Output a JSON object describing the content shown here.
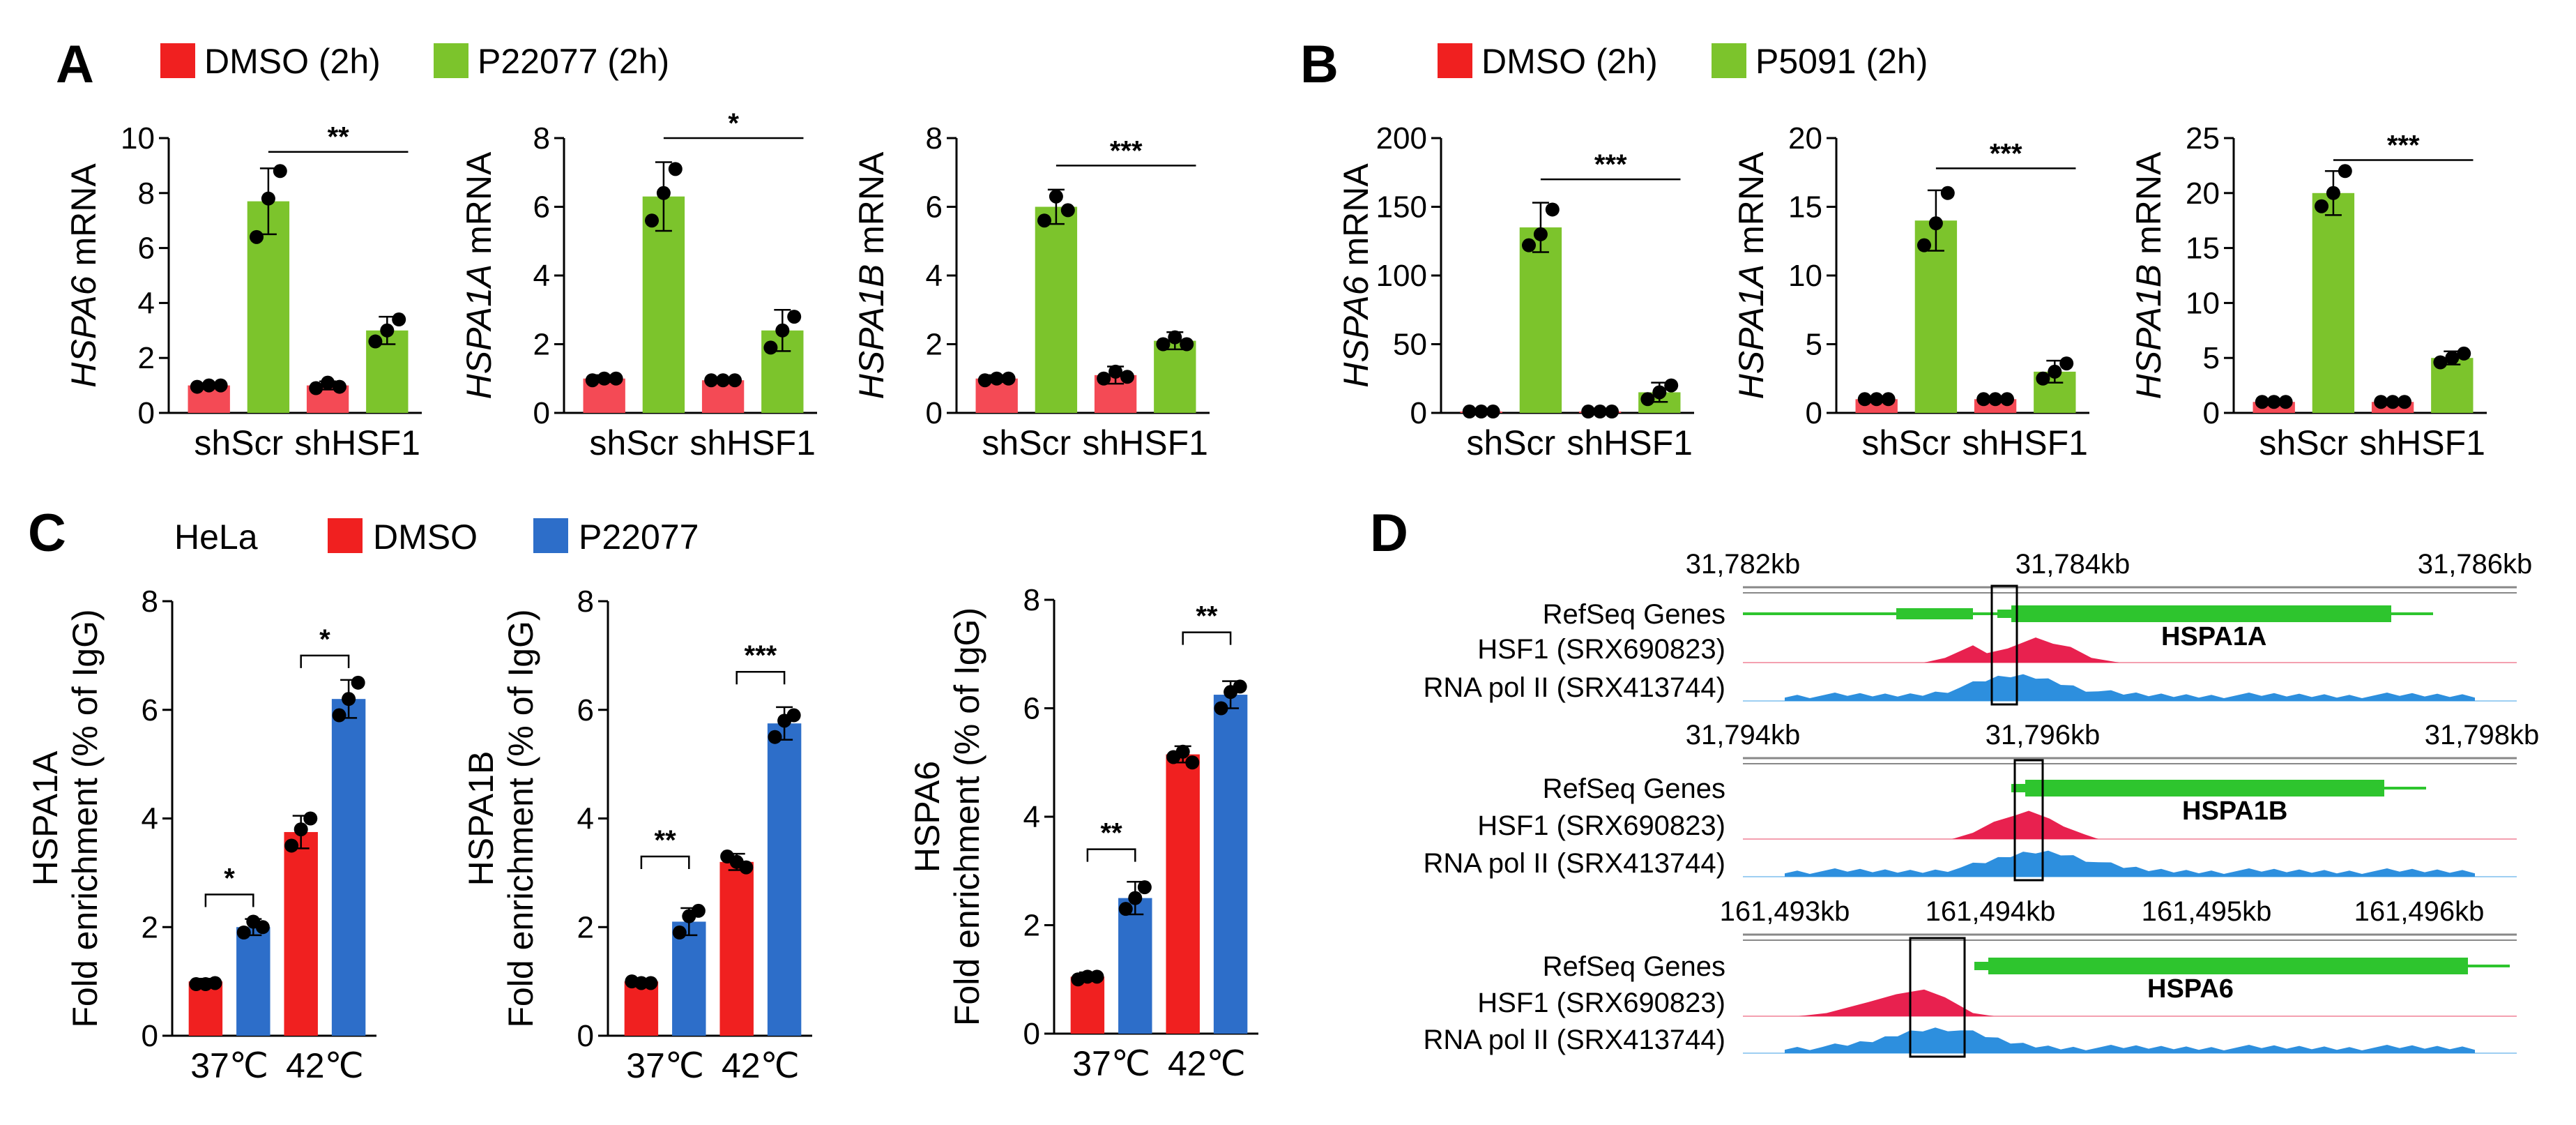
{
  "figure": {
    "panel_letters": {
      "A": "A",
      "B": "B",
      "C": "C",
      "D": "D"
    },
    "legend_A": {
      "dmso": "DMSO (2h)",
      "drug": "P22077 (2h)"
    },
    "legend_B": {
      "dmso": "DMSO (2h)",
      "drug": "P5091 (2h)"
    },
    "legend_C": {
      "cell": "HeLa",
      "dmso": "DMSO",
      "drug": "P22077"
    }
  },
  "colors": {
    "red": "#f02020",
    "pinkred": "#f44a55",
    "green": "#7cc42c",
    "blue": "#2d6ec9",
    "track_red": "#e8214f",
    "track_blue": "#2d8fde",
    "gene_green": "#2ec52e"
  },
  "chart_data": [
    {
      "id": "A1",
      "type": "bar",
      "ylabel_italic": "HSPA6",
      "ylabel_rest": " mRNA",
      "ylim": [
        0,
        10
      ],
      "yticks": [
        "0",
        "2",
        "4",
        "6",
        "8",
        "10"
      ],
      "groups": [
        "shScr",
        "shHSF1"
      ],
      "series": [
        {
          "name": "DMSO (2h)",
          "values": [
            1.0,
            1.0
          ]
        },
        {
          "name": "P22077 (2h)",
          "values": [
            7.7,
            3.0
          ]
        }
      ],
      "errors": [
        [
          0.05,
          0.15
        ],
        [
          1.2,
          0.5
        ]
      ],
      "points": [
        [
          [
            0.95,
            1.0,
            1.0
          ],
          [
            0.9,
            1.1,
            0.95
          ]
        ],
        [
          [
            6.4,
            7.8,
            8.8
          ],
          [
            2.6,
            3.0,
            3.4
          ]
        ]
      ],
      "sig": {
        "label": "**",
        "y": 9.5
      }
    },
    {
      "id": "A2",
      "type": "bar",
      "ylabel_italic": "HSPA1A",
      "ylabel_rest": " mRNA",
      "ylim": [
        0,
        8
      ],
      "yticks": [
        "0",
        "2",
        "4",
        "6",
        "8"
      ],
      "groups": [
        "shScr",
        "shHSF1"
      ],
      "series": [
        {
          "name": "DMSO (2h)",
          "values": [
            1.0,
            0.95
          ]
        },
        {
          "name": "P22077 (2h)",
          "values": [
            6.3,
            2.4
          ]
        }
      ],
      "errors": [
        [
          0.1,
          0.05
        ],
        [
          1.0,
          0.6
        ]
      ],
      "points": [
        [
          [
            0.95,
            1.0,
            1.0
          ],
          [
            0.95,
            0.95,
            0.95
          ]
        ],
        [
          [
            5.6,
            6.4,
            7.1
          ],
          [
            1.9,
            2.4,
            2.8
          ]
        ]
      ],
      "sig": {
        "label": "*",
        "y": 8.0
      }
    },
    {
      "id": "A3",
      "type": "bar",
      "ylabel_italic": "HSPA1B",
      "ylabel_rest": " mRNA",
      "ylim": [
        0,
        8
      ],
      "yticks": [
        "0",
        "2",
        "4",
        "6",
        "8"
      ],
      "groups": [
        "shScr",
        "shHSF1"
      ],
      "series": [
        {
          "name": "DMSO (2h)",
          "values": [
            1.0,
            1.1
          ]
        },
        {
          "name": "P22077 (2h)",
          "values": [
            6.0,
            2.1
          ]
        }
      ],
      "errors": [
        [
          0.1,
          0.25
        ],
        [
          0.5,
          0.25
        ]
      ],
      "points": [
        [
          [
            0.95,
            1.0,
            1.0
          ],
          [
            1.0,
            1.2,
            1.05
          ]
        ],
        [
          [
            5.6,
            6.3,
            5.9
          ],
          [
            2.0,
            2.2,
            2.0
          ]
        ]
      ],
      "sig": {
        "label": "***",
        "y": 7.2
      }
    },
    {
      "id": "B1",
      "type": "bar",
      "ylabel_italic": "HSPA6",
      "ylabel_rest": " mRNA",
      "ylim": [
        0,
        200
      ],
      "yticks": [
        "0",
        "50",
        "100",
        "150",
        "200"
      ],
      "groups": [
        "shScr",
        "shHSF1"
      ],
      "series": [
        {
          "name": "DMSO (2h)",
          "values": [
            1,
            1
          ]
        },
        {
          "name": "P5091 (2h)",
          "values": [
            135,
            15
          ]
        }
      ],
      "errors": [
        [
          1,
          1
        ],
        [
          18,
          7
        ]
      ],
      "points": [
        [
          [
            1,
            1,
            1
          ],
          [
            1,
            1,
            1
          ]
        ],
        [
          [
            122,
            130,
            148
          ],
          [
            10,
            15,
            20
          ]
        ]
      ],
      "sig": {
        "label": "***",
        "y": 170
      }
    },
    {
      "id": "B2",
      "type": "bar",
      "ylabel_italic": "HSPA1A",
      "ylabel_rest": " mRNA",
      "ylim": [
        0,
        20
      ],
      "yticks": [
        "0",
        "5",
        "10",
        "15",
        "20"
      ],
      "groups": [
        "shScr",
        "shHSF1"
      ],
      "series": [
        {
          "name": "DMSO (2h)",
          "values": [
            1.0,
            1.0
          ]
        },
        {
          "name": "P5091 (2h)",
          "values": [
            14.0,
            3.0
          ]
        }
      ],
      "errors": [
        [
          0.2,
          0.2
        ],
        [
          2.2,
          0.8
        ]
      ],
      "points": [
        [
          [
            1.0,
            1.0,
            1.0
          ],
          [
            1.0,
            1.0,
            1.0
          ]
        ],
        [
          [
            12.2,
            13.8,
            16.0
          ],
          [
            2.5,
            3.0,
            3.6
          ]
        ]
      ],
      "sig": {
        "label": "***",
        "y": 17.8
      }
    },
    {
      "id": "B3",
      "type": "bar",
      "ylabel_italic": "HSPA1B",
      "ylabel_rest": " mRNA",
      "ylim": [
        0,
        25
      ],
      "yticks": [
        "0",
        "5",
        "10",
        "15",
        "20",
        "25"
      ],
      "groups": [
        "shScr",
        "shHSF1"
      ],
      "series": [
        {
          "name": "DMSO (2h)",
          "values": [
            1.0,
            1.0
          ]
        },
        {
          "name": "P5091 (2h)",
          "values": [
            20.0,
            5.0
          ]
        }
      ],
      "errors": [
        [
          0.2,
          0.2
        ],
        [
          2.0,
          0.6
        ]
      ],
      "points": [
        [
          [
            1.0,
            1.0,
            1.0
          ],
          [
            1.0,
            1.0,
            1.0
          ]
        ],
        [
          [
            18.8,
            20.0,
            22.0
          ],
          [
            4.6,
            5.0,
            5.4
          ]
        ]
      ],
      "sig": {
        "label": "***",
        "y": 23.0
      }
    },
    {
      "id": "C1",
      "type": "bar",
      "ylabel_top": "HSPA1A",
      "ylabel": "Fold enrichment (% of IgG)",
      "ylim": [
        0,
        8
      ],
      "yticks": [
        "0",
        "2",
        "4",
        "6",
        "8"
      ],
      "groups": [
        "37℃",
        "42℃"
      ],
      "series": [
        {
          "name": "DMSO",
          "values": [
            1.0,
            3.75
          ]
        },
        {
          "name": "P22077",
          "values": [
            2.0,
            6.2
          ]
        }
      ],
      "errors": [
        [
          0.05,
          0.3
        ],
        [
          0.15,
          0.35
        ]
      ],
      "points": [
        [
          [
            0.95,
            0.95,
            0.97
          ],
          [
            3.5,
            3.8,
            4.0
          ]
        ],
        [
          [
            1.9,
            2.1,
            2.0
          ],
          [
            5.9,
            6.2,
            6.5
          ]
        ]
      ],
      "pair_sig": [
        {
          "label": "*",
          "y": 2.6
        },
        {
          "label": "*",
          "y": 7.0
        }
      ]
    },
    {
      "id": "C2",
      "type": "bar",
      "ylabel_top": "HSPA1B",
      "ylabel": "Fold enrichment (% of IgG)",
      "ylim": [
        0,
        8
      ],
      "yticks": [
        "0",
        "2",
        "4",
        "6",
        "8"
      ],
      "groups": [
        "37℃",
        "42℃"
      ],
      "series": [
        {
          "name": "DMSO",
          "values": [
            1.0,
            3.2
          ]
        },
        {
          "name": "P22077",
          "values": [
            2.1,
            5.75
          ]
        }
      ],
      "errors": [
        [
          0.05,
          0.15
        ],
        [
          0.25,
          0.3
        ]
      ],
      "points": [
        [
          [
            1.0,
            0.97,
            0.97
          ],
          [
            3.3,
            3.2,
            3.1
          ]
        ],
        [
          [
            1.9,
            2.2,
            2.3
          ],
          [
            5.5,
            5.8,
            5.9
          ]
        ]
      ],
      "pair_sig": [
        {
          "label": "**",
          "y": 3.3
        },
        {
          "label": "***",
          "y": 6.7
        }
      ]
    },
    {
      "id": "C3",
      "type": "bar",
      "ylabel_top": "HSPA6",
      "ylabel": "Fold enrichment (% of IgG)",
      "ylim": [
        0,
        8
      ],
      "yticks": [
        "0",
        "2",
        "4",
        "6",
        "8"
      ],
      "groups": [
        "37℃",
        "42℃"
      ],
      "series": [
        {
          "name": "DMSO",
          "values": [
            1.05,
            5.15
          ]
        },
        {
          "name": "P22077",
          "values": [
            2.5,
            6.25
          ]
        }
      ],
      "errors": [
        [
          0.08,
          0.15
        ],
        [
          0.3,
          0.25
        ]
      ],
      "points": [
        [
          [
            1.0,
            1.05,
            1.05
          ],
          [
            5.1,
            5.2,
            5.0
          ]
        ],
        [
          [
            2.3,
            2.5,
            2.7
          ],
          [
            6.0,
            6.3,
            6.4
          ]
        ]
      ],
      "pair_sig": [
        {
          "label": "**",
          "y": 3.4
        },
        {
          "label": "**",
          "y": 7.4
        }
      ]
    }
  ],
  "tracks": [
    {
      "ticks": [
        "31,782kb",
        "31,784kb",
        "31,786kb"
      ],
      "labels": [
        "RefSeq Genes",
        "HSF1 (SRX690823)",
        "RNA pol II (SRX413744)"
      ],
      "gene": "HSPA1A"
    },
    {
      "ticks": [
        "31,794kb",
        "31,796kb",
        "31,798kb"
      ],
      "labels": [
        "RefSeq Genes",
        "HSF1 (SRX690823)",
        "RNA pol II (SRX413744)"
      ],
      "gene": "HSPA1B"
    },
    {
      "ticks": [
        "161,493kb",
        "161,494kb",
        "161,495kb",
        "161,496kb"
      ],
      "labels": [
        "RefSeq Genes",
        "HSF1 (SRX690823)",
        "RNA pol II (SRX413744)"
      ],
      "gene": "HSPA6"
    }
  ]
}
